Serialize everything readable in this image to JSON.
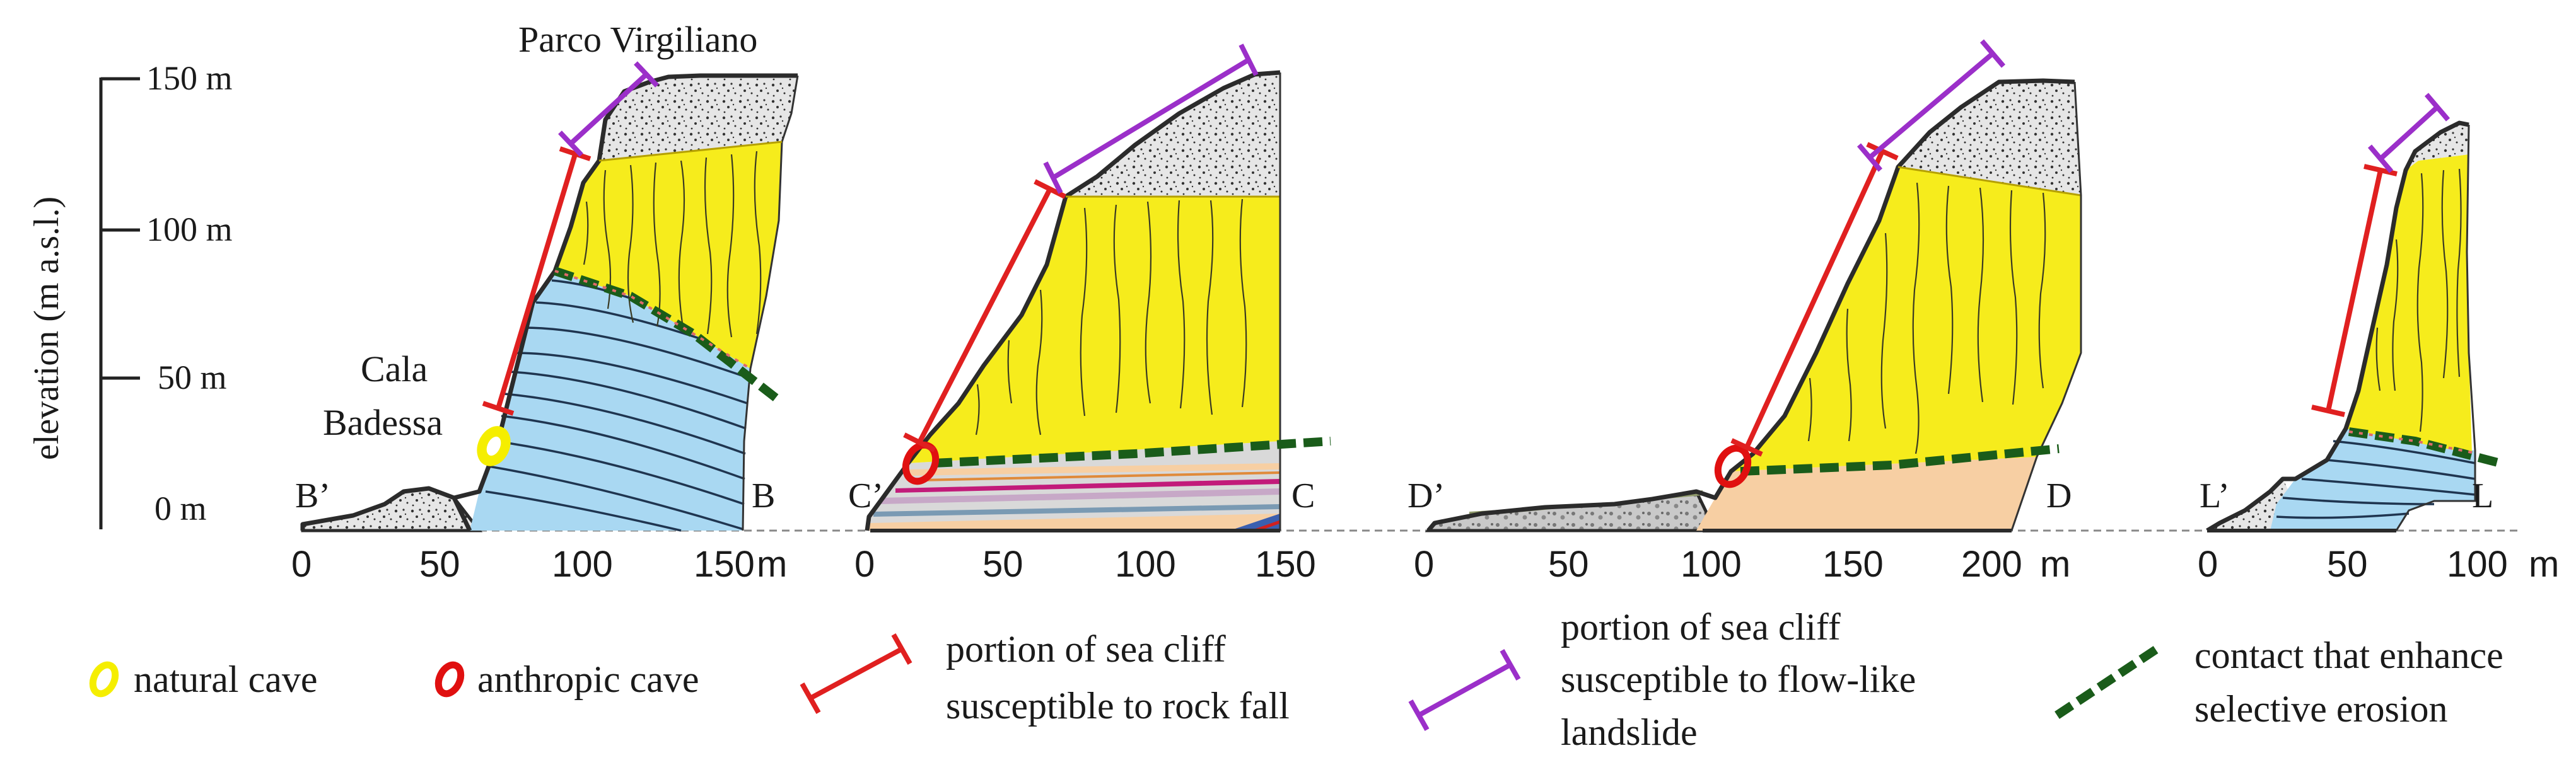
{
  "figure": {
    "y_axis": {
      "label": "elevation (m a.s.l.)",
      "ticks": [
        "150 m",
        "100 m",
        "50 m",
        "0 m"
      ]
    },
    "sections": [
      {
        "id": "B",
        "start_label": "B’",
        "end_label": "B",
        "x_ticks": [
          "0",
          "50",
          "100",
          "150"
        ],
        "x_unit": "m",
        "place_names": [
          "Parco Virgiliano",
          "Cala",
          "Badessa"
        ]
      },
      {
        "id": "C",
        "start_label": "C’",
        "end_label": "C",
        "x_ticks": [
          "0",
          "50",
          "100",
          "150"
        ]
      },
      {
        "id": "D",
        "start_label": "D’",
        "end_label": "D",
        "x_ticks": [
          "0",
          "50",
          "100",
          "150",
          "200"
        ],
        "x_unit": "m"
      },
      {
        "id": "L",
        "start_label": "L’",
        "end_label": "L",
        "x_ticks": [
          "0",
          "50",
          "100"
        ],
        "x_unit": "m"
      }
    ]
  },
  "legend": {
    "natural_cave": "natural cave",
    "anthropic_cave": "anthropic cave",
    "rock_fall_line1": "portion of sea cliff",
    "rock_fall_line2": "susceptible to rock fall",
    "flow_line1": "portion of sea cliff",
    "flow_line2": "susceptible to flow-like",
    "flow_line3": "landslide",
    "contact_line1": "contact that enhance",
    "contact_line2": "selective erosion"
  },
  "colors": {
    "rock_fall": "#e02020",
    "flow_like": "#9b2fc9",
    "contact": "#1a5c1a",
    "natural_cave": "#f5ee00",
    "anthropic_cave": "#e01010",
    "tuff_yellow": "#f6ec1c",
    "blue_bedrock": "#a9d8f2",
    "debris_grey": "#e4e4e4",
    "sand_peach": "#f7cfa3"
  }
}
